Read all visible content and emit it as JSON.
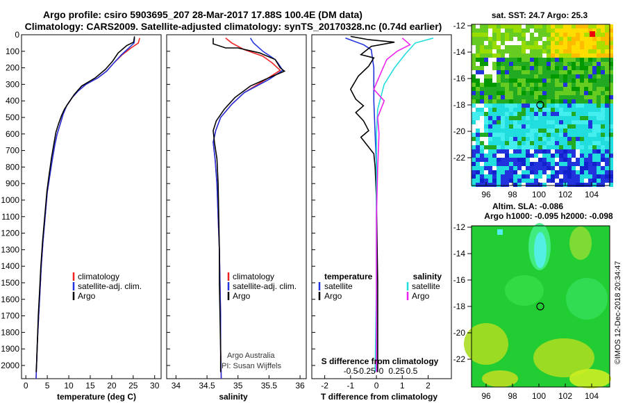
{
  "title_line1": "Argo profile: csiro 5903695_207 28-Mar-2017 17.88S 100.4E (DM data)",
  "title_line2": "Climatology: CARS2009. Satellite-adjusted climatology: synTS_20170328.nc (0.74d earlier)",
  "colors": {
    "climatology": "#ee2222",
    "satellite": "#2233dd",
    "argo": "#000000",
    "sal_satellite": "#22dddd",
    "sal_argo": "#ee22ee"
  },
  "depth_ticks": [
    "0",
    "100",
    "200",
    "300",
    "400",
    "500",
    "600",
    "700",
    "800",
    "900",
    "1000",
    "1100",
    "1200",
    "1300",
    "1400",
    "1500",
    "1600",
    "1700",
    "1800",
    "1900",
    "2000"
  ],
  "temperature_panel": {
    "xlabel": "temperature (deg C)",
    "xticks": [
      "0",
      "5",
      "10",
      "15",
      "20",
      "25",
      "30"
    ],
    "legend": [
      "climatology",
      "satellite-adj. clim.",
      "Argo"
    ]
  },
  "salinity_panel": {
    "xlabel": "salinity",
    "xticks": [
      "34",
      "34.5",
      "35",
      "35.5",
      "36"
    ],
    "legend": [
      "climatology",
      "satellite-adj. clim.",
      "Argo"
    ],
    "credit1": "Argo Australia",
    "credit2": "PI: Susan Wijffels"
  },
  "diff_panel": {
    "xlabel": "T difference from climatology",
    "xticks": [
      "-2",
      "-1",
      "0",
      "1",
      "2"
    ],
    "s_label": "S difference from climatology",
    "s_ticks": [
      "-0.5",
      "-0.25",
      "0",
      "0.25",
      "0.5"
    ],
    "legend_temp_header": "temperature",
    "legend_sal_header": "salinity",
    "legend_items": [
      "satellite",
      "Argo"
    ]
  },
  "sst_map": {
    "title": "sat. SST: 24.7 Argo: 25.3",
    "yticks": [
      "-12",
      "-14",
      "-16",
      "-18",
      "-20",
      "-22"
    ],
    "xticks": [
      "96",
      "98",
      "100",
      "102",
      "104"
    ]
  },
  "sla_map": {
    "title1": "Altim. SLA: -0.086",
    "title2": "Argo h1000: -0.095 h2000: -0.098",
    "yticks": [
      "-12",
      "-14",
      "-16",
      "-18",
      "-20",
      "-22"
    ],
    "xticks": [
      "96",
      "98",
      "100",
      "102",
      "104"
    ]
  },
  "footer_stamp": "©IMOS 12-Dec-2018 20:34:47",
  "chart_data": [
    {
      "type": "line",
      "title": "",
      "xlabel": "temperature (deg C)",
      "ylabel": "",
      "xlim": [
        -1,
        31.5
      ],
      "ylim": [
        2080,
        0
      ],
      "series": [
        {
          "name": "climatology",
          "points": [
            [
              26.5,
              20
            ],
            [
              26.2,
              50
            ],
            [
              24.5,
              80
            ],
            [
              22.5,
              120
            ],
            [
              20.5,
              170
            ],
            [
              18.8,
              220
            ],
            [
              16.8,
              260
            ],
            [
              14,
              300
            ],
            [
              12.2,
              340
            ],
            [
              10.8,
              380
            ],
            [
              9.5,
              430
            ],
            [
              8.7,
              480
            ],
            [
              8.0,
              540
            ],
            [
              7.3,
              600
            ],
            [
              6.8,
              660
            ],
            [
              6.2,
              750
            ],
            [
              5.6,
              850
            ],
            [
              5.0,
              950
            ],
            [
              4.5,
              1100
            ],
            [
              4.0,
              1250
            ],
            [
              3.6,
              1400
            ],
            [
              3.3,
              1550
            ],
            [
              3.0,
              1700
            ],
            [
              2.7,
              1850
            ],
            [
              2.5,
              2000
            ],
            [
              2.4,
              2080
            ]
          ]
        },
        {
          "name": "satellite-adj. clim.",
          "points": [
            [
              25.3,
              20
            ],
            [
              25.2,
              50
            ],
            [
              24.0,
              80
            ],
            [
              22.3,
              120
            ],
            [
              20.5,
              170
            ],
            [
              18.8,
              220
            ],
            [
              16.8,
              260
            ],
            [
              14,
              300
            ],
            [
              12.2,
              340
            ],
            [
              10.8,
              380
            ],
            [
              9.5,
              430
            ],
            [
              8.7,
              480
            ],
            [
              8.0,
              540
            ],
            [
              7.3,
              600
            ],
            [
              6.8,
              660
            ],
            [
              6.2,
              750
            ],
            [
              5.6,
              850
            ],
            [
              5.0,
              950
            ],
            [
              4.5,
              1100
            ],
            [
              4.0,
              1250
            ],
            [
              3.6,
              1400
            ],
            [
              3.3,
              1550
            ],
            [
              3.0,
              1700
            ],
            [
              2.7,
              1850
            ],
            [
              2.5,
              2000
            ],
            [
              2.4,
              2080
            ]
          ]
        },
        {
          "name": "Argo",
          "points": [
            [
              25.3,
              10
            ],
            [
              25.1,
              45
            ],
            [
              23.5,
              65
            ],
            [
              21.5,
              110
            ],
            [
              20.2,
              160
            ],
            [
              18.5,
              210
            ],
            [
              16.2,
              260
            ],
            [
              13.0,
              310
            ],
            [
              11.3,
              360
            ],
            [
              10.0,
              410
            ],
            [
              9.0,
              450
            ],
            [
              8.3,
              490
            ],
            [
              7.6,
              540
            ],
            [
              7.0,
              590
            ],
            [
              6.6,
              650
            ],
            [
              6.0,
              740
            ],
            [
              5.4,
              850
            ],
            [
              4.9,
              950
            ],
            [
              4.4,
              1100
            ],
            [
              3.9,
              1250
            ],
            [
              3.5,
              1400
            ],
            [
              3.2,
              1550
            ],
            [
              2.9,
              1700
            ],
            [
              2.7,
              1850
            ],
            [
              2.5,
              2000
            ],
            [
              2.4,
              2040
            ]
          ]
        }
      ]
    },
    {
      "type": "line",
      "title": "",
      "xlabel": "salinity",
      "ylabel": "",
      "xlim": [
        33.85,
        36.1
      ],
      "ylim": [
        2080,
        0
      ],
      "series": [
        {
          "name": "climatology",
          "points": [
            [
              34.8,
              20
            ],
            [
              34.9,
              50
            ],
            [
              35.1,
              90
            ],
            [
              35.4,
              130
            ],
            [
              35.55,
              170
            ],
            [
              35.68,
              215
            ],
            [
              35.45,
              270
            ],
            [
              35.1,
              350
            ],
            [
              34.9,
              420
            ],
            [
              34.72,
              500
            ],
            [
              34.64,
              580
            ],
            [
              34.6,
              650
            ],
            [
              34.63,
              750
            ],
            [
              34.66,
              900
            ],
            [
              34.68,
              1100
            ],
            [
              34.7,
              1300
            ],
            [
              34.71,
              1500
            ],
            [
              34.72,
              1700
            ],
            [
              34.72,
              1900
            ],
            [
              34.73,
              2080
            ]
          ]
        },
        {
          "name": "satellite-adj. clim.",
          "points": [
            [
              35.2,
              20
            ],
            [
              35.25,
              50
            ],
            [
              35.4,
              100
            ],
            [
              35.6,
              150
            ],
            [
              35.65,
              175
            ],
            [
              35.72,
              215
            ],
            [
              35.5,
              270
            ],
            [
              35.1,
              350
            ],
            [
              34.9,
              420
            ],
            [
              34.72,
              500
            ],
            [
              34.64,
              580
            ],
            [
              34.6,
              650
            ],
            [
              34.63,
              750
            ],
            [
              34.66,
              900
            ],
            [
              34.68,
              1100
            ],
            [
              34.7,
              1300
            ],
            [
              34.71,
              1500
            ],
            [
              34.72,
              1700
            ],
            [
              34.72,
              1900
            ],
            [
              34.73,
              2080
            ]
          ]
        },
        {
          "name": "Argo",
          "points": [
            [
              34.6,
              20
            ],
            [
              34.6,
              55
            ],
            [
              34.8,
              80
            ],
            [
              35.0,
              80
            ],
            [
              35.35,
              110
            ],
            [
              35.6,
              150
            ],
            [
              35.68,
              200
            ],
            [
              35.75,
              220
            ],
            [
              35.5,
              260
            ],
            [
              35.2,
              310
            ],
            [
              34.95,
              380
            ],
            [
              34.78,
              450
            ],
            [
              34.65,
              520
            ],
            [
              34.6,
              580
            ],
            [
              34.62,
              650
            ],
            [
              34.66,
              750
            ],
            [
              34.68,
              900
            ],
            [
              34.69,
              1100
            ],
            [
              34.7,
              1300
            ],
            [
              34.7,
              1500
            ],
            [
              34.71,
              1700
            ],
            [
              34.72,
              1900
            ],
            [
              34.72,
              2040
            ]
          ]
        }
      ]
    },
    {
      "type": "line",
      "title": "",
      "xlabel": "T difference from climatology",
      "ylabel": "",
      "xlim": [
        -2.5,
        2.9
      ],
      "ylim": [
        2080,
        0
      ],
      "series": [
        {
          "name": "temperature satellite",
          "points": [
            [
              -1.2,
              20
            ],
            [
              -0.5,
              60
            ],
            [
              -0.2,
              90
            ],
            [
              -0.1,
              200
            ],
            [
              -0.1,
              400
            ],
            [
              0,
              800
            ],
            [
              0,
              2040
            ]
          ]
        },
        {
          "name": "temperature Argo",
          "points": [
            [
              -1.0,
              10
            ],
            [
              -0.3,
              30
            ],
            [
              0.7,
              45
            ],
            [
              -0.2,
              70
            ],
            [
              -0.6,
              120
            ],
            [
              -0.1,
              140
            ],
            [
              -0.3,
              190
            ],
            [
              -0.7,
              250
            ],
            [
              -1.0,
              330
            ],
            [
              -0.8,
              390
            ],
            [
              -0.5,
              430
            ],
            [
              -0.8,
              470
            ],
            [
              -0.5,
              520
            ],
            [
              -0.3,
              580
            ],
            [
              -0.6,
              620
            ],
            [
              -0.3,
              680
            ],
            [
              -0.1,
              720
            ],
            [
              -0.05,
              800
            ],
            [
              0,
              1000
            ],
            [
              0.05,
              1500
            ],
            [
              0.05,
              2040
            ]
          ]
        },
        {
          "name": "salinity satellite",
          "points": [
            [
              2.2,
              20
            ],
            [
              1.5,
              50
            ],
            [
              1.1,
              120
            ],
            [
              0.7,
              200
            ],
            [
              0.3,
              300
            ],
            [
              0.05,
              450
            ],
            [
              0,
              600
            ],
            [
              0,
              800
            ],
            [
              0,
              1000
            ],
            [
              0,
              1500
            ],
            [
              -0.05,
              2040
            ]
          ]
        },
        {
          "name": "salinity Argo",
          "points": [
            [
              1.0,
              20
            ],
            [
              1.3,
              60
            ],
            [
              0.8,
              100
            ],
            [
              0.4,
              150
            ],
            [
              0.2,
              220
            ],
            [
              -0.1,
              330
            ],
            [
              0.3,
              400
            ],
            [
              0.05,
              500
            ],
            [
              0.1,
              600
            ],
            [
              0.05,
              800
            ],
            [
              0,
              1100
            ],
            [
              0,
              1500
            ],
            [
              0,
              2040
            ]
          ]
        }
      ]
    }
  ]
}
